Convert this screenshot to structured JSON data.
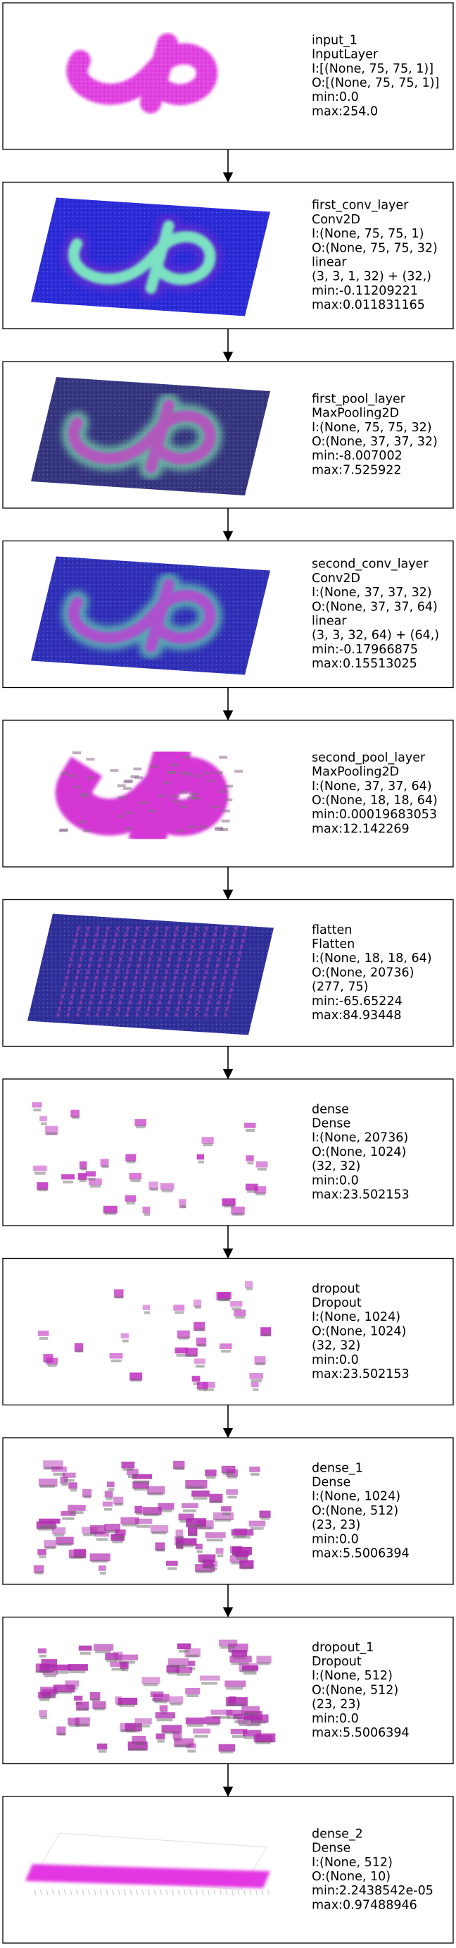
{
  "diagram": {
    "layers": [
      {
        "name": "input_1",
        "type": "InputLayer",
        "input": "I:[(None, 75, 75, 1)]",
        "output": "O:[(None, 75, 75, 1)]",
        "extra": [],
        "min": "min:0.0",
        "max": "max:254.0",
        "viz": "input",
        "colors": {
          "base": "#ffffff",
          "fg": "#dd22dd"
        }
      },
      {
        "name": "first_conv_layer",
        "type": "Conv2D",
        "input": "I:(None, 75, 75, 1)",
        "output": "O:(None, 75, 75, 32)",
        "extra": [
          "linear",
          "(3, 3, 1, 32) + (32,)"
        ],
        "min": "min:-0.11209221",
        "max": "max:0.011831165",
        "viz": "plane-shape",
        "colors": {
          "base": "#2a2ad8",
          "fg": "#7ff5c0",
          "edge": "#6a2ad0"
        }
      },
      {
        "name": "first_pool_layer",
        "type": "MaxPooling2D",
        "input": "I:(None, 75, 75, 32)",
        "output": "O:(None, 37, 37, 32)",
        "extra": [],
        "min": "min:-8.007002",
        "max": "max:7.525922",
        "viz": "plane-shape",
        "colors": {
          "base": "#35357f",
          "fg": "#b94fc0",
          "edge": "#7fe0b0"
        }
      },
      {
        "name": "second_conv_layer",
        "type": "Conv2D",
        "input": "I:(None, 37, 37, 32)",
        "output": "O:(None, 37, 37, 64)",
        "extra": [
          "linear",
          "(3, 3, 32, 64) + (64,)"
        ],
        "min": "min:-0.17966875",
        "max": "max:0.15513025",
        "viz": "plane-shape",
        "colors": {
          "base": "#2f2fb8",
          "fg": "#b54ad0",
          "edge": "#6ad8b0"
        }
      },
      {
        "name": "second_pool_layer",
        "type": "MaxPooling2D",
        "input": "I:(None, 37, 37, 64)",
        "output": "O:(None, 18, 18, 64)",
        "extra": [],
        "min": "min:0.00019683053",
        "max": "max:12.142269",
        "viz": "shape-blocks",
        "colors": {
          "base": "#ffffff",
          "fg": "#d020d0",
          "edge": "#8a6a8a"
        }
      },
      {
        "name": "flatten",
        "type": "Flatten",
        "input": "I:(None, 18, 18, 64)",
        "output": "O:(None, 20736)",
        "extra": [
          "(277, 75)"
        ],
        "min": "min:-65.65224",
        "max": "max:84.93448",
        "viz": "plane-stripes",
        "colors": {
          "base": "#2f2f9a",
          "fg": "#9a40b0",
          "edge": "#5a5a5a"
        }
      },
      {
        "name": "dense",
        "type": "Dense",
        "input": "I:(None, 20736)",
        "output": "O:(None, 1024)",
        "extra": [
          "(32, 32)"
        ],
        "min": "min:0.0",
        "max": "max:23.502153",
        "viz": "sparse",
        "colors": {
          "base": "#ffffff",
          "fg": "#c030c0",
          "edge": "#707070"
        }
      },
      {
        "name": "dropout",
        "type": "Dropout",
        "input": "I:(None, 1024)",
        "output": "O:(None, 1024)",
        "extra": [
          "(32, 32)"
        ],
        "min": "min:0.0",
        "max": "max:23.502153",
        "viz": "sparse",
        "colors": {
          "base": "#ffffff",
          "fg": "#c030c0",
          "edge": "#707070"
        }
      },
      {
        "name": "dense_1",
        "type": "Dense",
        "input": "I:(None, 1024)",
        "output": "O:(None, 512)",
        "extra": [
          "(23, 23)"
        ],
        "min": "min:0.0",
        "max": "max:5.5006394",
        "viz": "dense-blocks",
        "colors": {
          "base": "#ffffff",
          "fg": "#b02ab0",
          "edge": "#6a6a6a"
        }
      },
      {
        "name": "dropout_1",
        "type": "Dropout",
        "input": "I:(None, 512)",
        "output": "O:(None, 512)",
        "extra": [
          "(23, 23)"
        ],
        "min": "min:0.0",
        "max": "max:5.5006394",
        "viz": "dense-blocks",
        "colors": {
          "base": "#ffffff",
          "fg": "#b02ab0",
          "edge": "#6a6a6a"
        }
      },
      {
        "name": "dense_2",
        "type": "Dense",
        "input": "I:(None, 512)",
        "output": "O:(None, 10)",
        "extra": [],
        "min": "min:2.2438542e-05",
        "max": "max:0.97488946",
        "viz": "bar",
        "colors": {
          "base": "#ffffff",
          "fg": "#e020e0",
          "edge": "#cccccc"
        }
      }
    ]
  }
}
